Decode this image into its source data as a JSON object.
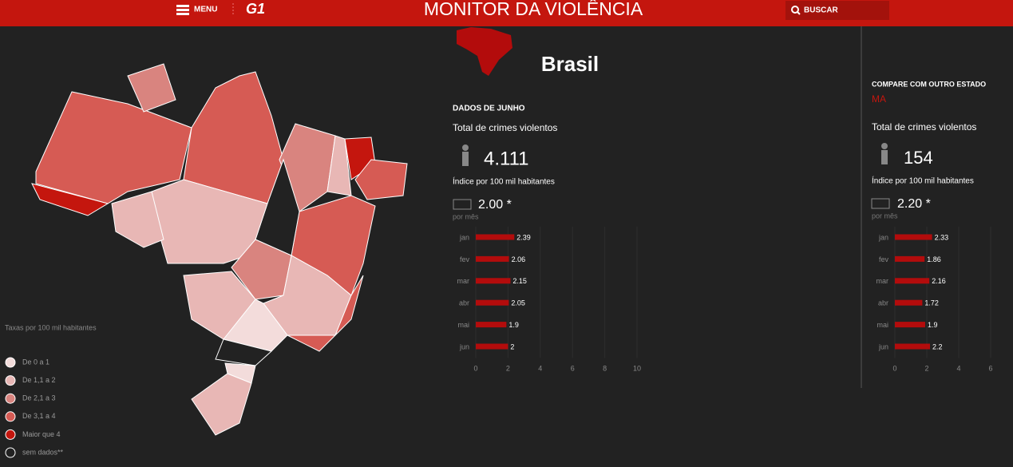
{
  "header": {
    "menu": "MENU",
    "logo": "G1",
    "title": "MONITOR DA VIOLÊNCIA",
    "search": "BUSCAR"
  },
  "legend": {
    "title": "Taxas por 100 mil habitantes",
    "items": [
      {
        "label": "De 0 a 1",
        "color": "#f3dcdb"
      },
      {
        "label": "De 1,1 a 2",
        "color": "#e8b7b5"
      },
      {
        "label": "De 2,1 a 3",
        "color": "#d9847f"
      },
      {
        "label": "De 3,1 a 4",
        "color": "#d65b54"
      },
      {
        "label": "Maior que 4",
        "color": "#c4160e"
      },
      {
        "label": "sem dados**",
        "color": "#222222"
      }
    ]
  },
  "brasil": {
    "name": "Brasil",
    "period": "DADOS DE JUNHO",
    "total_label": "Total de crimes violentos",
    "total": "4.111",
    "index_label": "Índice por 100 mil habitantes",
    "index": "2.00 *",
    "per": "por mês",
    "chart": {
      "type": "bar",
      "categories": [
        "jan",
        "fev",
        "mar",
        "abr",
        "mai",
        "jun"
      ],
      "values": [
        2.39,
        2.06,
        2.15,
        2.05,
        1.9,
        2
      ],
      "color": "#b30c0c",
      "xlim": [
        0,
        10
      ],
      "xticks": [
        0,
        2,
        4,
        6,
        8,
        10
      ]
    }
  },
  "compare": {
    "title": "COMPARE COM OUTRO ESTADO",
    "state": "MA",
    "total_label": "Total de crimes violentos",
    "total": "154",
    "index_label": "Índice por 100 mil habitantes",
    "index": "2.20 *",
    "per": "por mês",
    "chart": {
      "type": "bar",
      "categories": [
        "jan",
        "fev",
        "mar",
        "abr",
        "mai",
        "jun"
      ],
      "values": [
        2.33,
        1.86,
        2.16,
        1.72,
        1.9,
        2.2
      ],
      "color": "#b30c0c",
      "xlim": [
        0,
        6
      ],
      "xticks": [
        0,
        2,
        4,
        6
      ]
    }
  }
}
